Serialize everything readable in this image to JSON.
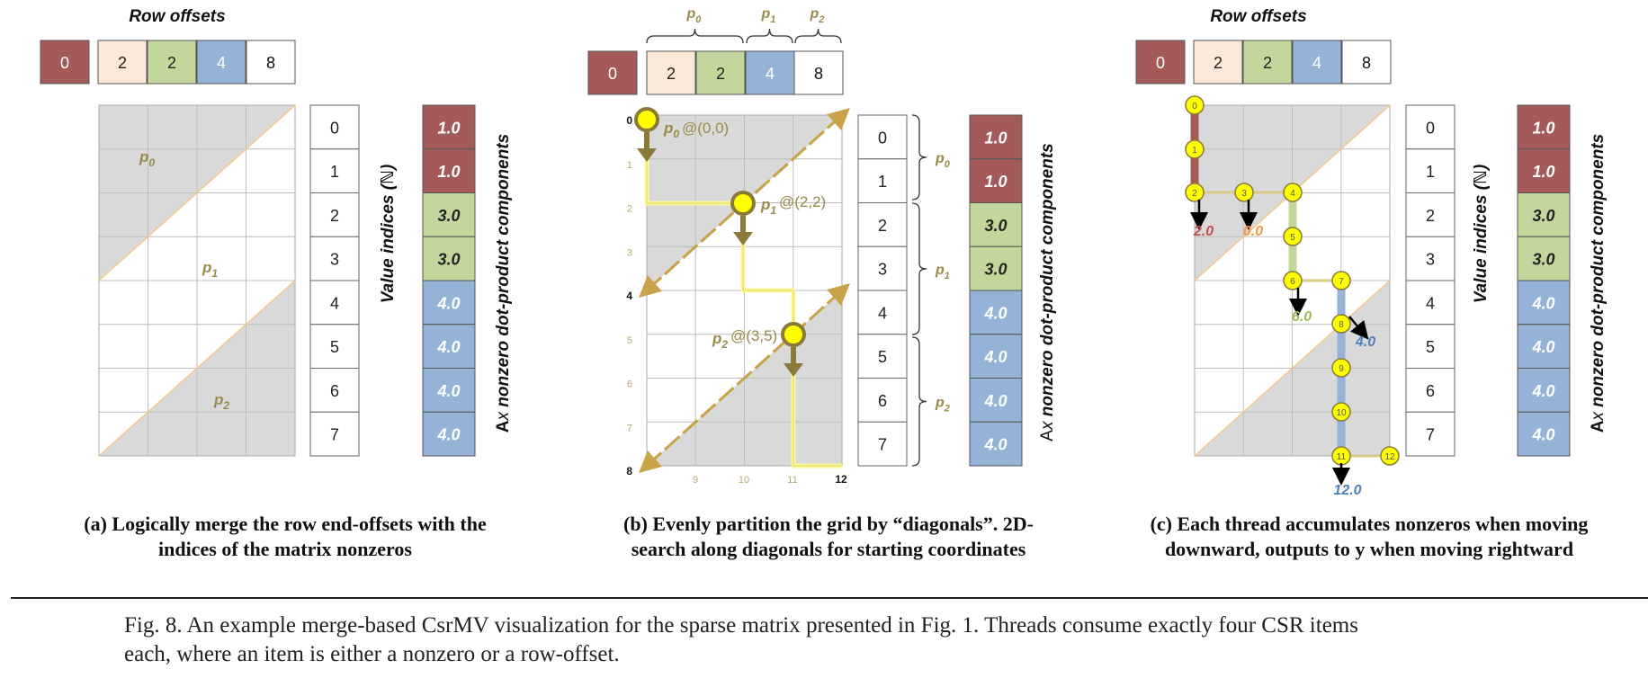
{
  "colors": {
    "red": "#a55a5a",
    "peach": "#fde9d9",
    "green": "#c3d69b",
    "blue": "#95b3d7",
    "gold": "#9a8a4a",
    "yellow": "#ffff00",
    "grey": "#d9d9d9",
    "red_text": "#c0504d",
    "orange_text": "#f79646",
    "green_text": "#9bbb59",
    "blue_text": "#4f81bd"
  },
  "icons": [
    "search-marker-icon",
    "down-arrow-icon",
    "diagonal-arrow-icon"
  ],
  "row_offsets_header": "Row offsets",
  "row_offsets": [
    "0",
    "2",
    "2",
    "4",
    "8"
  ],
  "value_indices": [
    "0",
    "1",
    "2",
    "3",
    "4",
    "5",
    "6",
    "7"
  ],
  "value_indices_label": "Value indices (ℕ)",
  "nonzeros": [
    "1.0",
    "1.0",
    "3.0",
    "3.0",
    "4.0",
    "4.0",
    "4.0",
    "4.0"
  ],
  "nonzeros_label_main": "A",
  "nonzeros_label_x": "x",
  "nonzeros_label_rest": "  nonzero dot-product components",
  "p_labels": [
    "p",
    "p",
    "p"
  ],
  "p_subs": [
    "0",
    "1",
    "2"
  ],
  "panel_b": {
    "coords": [
      "@(0,0)",
      "@(2,2)",
      "@(3,5)"
    ],
    "y_ticks": [
      "0",
      "1",
      "2",
      "3",
      "4",
      "5",
      "6",
      "7",
      "8"
    ],
    "x_ticks": [
      "9",
      "10",
      "11",
      "12"
    ]
  },
  "panel_c": {
    "nodes": [
      "0",
      "1",
      "2",
      "3",
      "4",
      "5",
      "6",
      "7",
      "8",
      "9",
      "10",
      "11",
      "12"
    ],
    "outputs": [
      "2.0",
      "0.0",
      "6.0",
      "4.0",
      "12.0"
    ]
  },
  "captions": {
    "a": [
      "(a) Logically merge the row end-offsets with the",
      "indices of the matrix nonzeros"
    ],
    "b": [
      "(b) Evenly partition the grid by “diagonals”.  2D-",
      "search along diagonals for starting coordinates"
    ],
    "c": [
      "(c) Each thread accumulates nonzeros when moving",
      "downward, outputs to y  when moving rightward"
    ]
  },
  "figure_caption": [
    "Fig. 8.  An example merge-based CsrMV visualization for the sparse matrix presented in Fig. 1.  Threads consume exactly four CSR items",
    "each, where an item is either a nonzero or a row-offset."
  ]
}
